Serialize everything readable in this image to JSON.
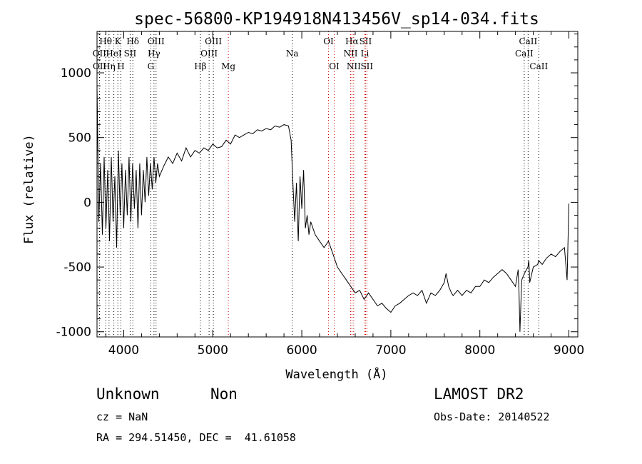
{
  "chart_data": {
    "type": "line",
    "title": "spec-56800-KP194918N413456V_sp14-034.fits",
    "xlabel": "Wavelength (Å)",
    "ylabel": "Flux (relative)",
    "xlim": [
      3700,
      9100
    ],
    "ylim": [
      -1040,
      1320
    ],
    "xticks": [
      4000,
      5000,
      6000,
      7000,
      8000,
      9000
    ],
    "yticks": [
      -1000,
      -500,
      0,
      500,
      1000
    ],
    "grid": false,
    "series": [
      {
        "color": "#000000",
        "x": [
          3700,
          3720,
          3740,
          3760,
          3780,
          3800,
          3820,
          3840,
          3860,
          3880,
          3900,
          3920,
          3940,
          3960,
          3980,
          4000,
          4020,
          4040,
          4060,
          4080,
          4100,
          4120,
          4140,
          4160,
          4180,
          4200,
          4220,
          4240,
          4260,
          4280,
          4300,
          4320,
          4340,
          4360,
          4380,
          4400,
          4450,
          4500,
          4550,
          4600,
          4650,
          4700,
          4750,
          4800,
          4850,
          4900,
          4950,
          5000,
          5050,
          5100,
          5150,
          5200,
          5250,
          5300,
          5350,
          5400,
          5450,
          5500,
          5550,
          5600,
          5650,
          5700,
          5750,
          5800,
          5850,
          5880,
          5900,
          5920,
          5940,
          5960,
          5980,
          6000,
          6020,
          6040,
          6060,
          6080,
          6100,
          6150,
          6200,
          6250,
          6300,
          6350,
          6400,
          6450,
          6500,
          6550,
          6600,
          6650,
          6700,
          6750,
          6800,
          6850,
          6900,
          6950,
          7000,
          7050,
          7100,
          7150,
          7200,
          7250,
          7300,
          7350,
          7400,
          7450,
          7500,
          7550,
          7600,
          7620,
          7650,
          7680,
          7700,
          7750,
          7800,
          7850,
          7900,
          7950,
          8000,
          8050,
          8100,
          8150,
          8200,
          8250,
          8300,
          8350,
          8400,
          8430,
          8440,
          8450,
          8460,
          8470,
          8500,
          8540,
          8550,
          8560,
          8600,
          8650,
          8660,
          8700,
          8750,
          8800,
          8850,
          8900,
          8950,
          8980,
          9000
        ],
        "values": [
          900,
          -150,
          300,
          -250,
          350,
          -200,
          250,
          -300,
          350,
          -150,
          200,
          -350,
          400,
          -100,
          300,
          -200,
          250,
          -100,
          350,
          -150,
          300,
          -50,
          250,
          -200,
          300,
          -100,
          250,
          0,
          350,
          50,
          300,
          100,
          350,
          150,
          300,
          200,
          280,
          350,
          300,
          380,
          320,
          420,
          350,
          400,
          380,
          420,
          400,
          450,
          420,
          430,
          480,
          450,
          520,
          500,
          520,
          540,
          530,
          560,
          550,
          570,
          560,
          590,
          580,
          600,
          590,
          480,
          150,
          -150,
          150,
          -300,
          200,
          -50,
          250,
          -200,
          -100,
          -250,
          -150,
          -250,
          -300,
          -350,
          -300,
          -400,
          -500,
          -550,
          -600,
          -650,
          -700,
          -680,
          -750,
          -700,
          -750,
          -800,
          -780,
          -820,
          -850,
          -800,
          -780,
          -750,
          -720,
          -700,
          -720,
          -680,
          -780,
          -700,
          -720,
          -680,
          -620,
          -550,
          -650,
          -700,
          -720,
          -680,
          -720,
          -680,
          -700,
          -650,
          -650,
          -600,
          -620,
          -580,
          -550,
          -520,
          -550,
          -600,
          -650,
          -520,
          -700,
          -1000,
          -800,
          -600,
          -550,
          -500,
          -450,
          -620,
          -500,
          -480,
          -450,
          -480,
          -430,
          -400,
          -420,
          -380,
          -350,
          -600,
          -10
        ]
      }
    ]
  },
  "spectral_lines": [
    {
      "label": "Hθ",
      "wave": 3797,
      "row": 1,
      "color": "#000000"
    },
    {
      "label": "K",
      "wave": 3934,
      "row": 1,
      "color": "#000000"
    },
    {
      "label": "Hδ",
      "wave": 4102,
      "row": 1,
      "color": "#000000"
    },
    {
      "label": "OIII",
      "wave": 4363,
      "row": 1,
      "color": "#000000"
    },
    {
      "label": "OIII",
      "wave": 5007,
      "row": 1,
      "color": "#000000"
    },
    {
      "label": "OI",
      "wave": 6300,
      "row": 1,
      "color": "#cc0000"
    },
    {
      "label": "Hα",
      "wave": 6563,
      "row": 1,
      "color": "#cc0000"
    },
    {
      "label": "SII",
      "wave": 6716,
      "row": 1,
      "color": "#cc0000"
    },
    {
      "label": "CaII",
      "wave": 8542,
      "row": 1,
      "color": "#000000"
    },
    {
      "label": "OII",
      "wave": 3727,
      "row": 2,
      "color": "#000000"
    },
    {
      "label": "HeI",
      "wave": 3889,
      "row": 2,
      "color": "#000000"
    },
    {
      "label": "SII",
      "wave": 4072,
      "row": 2,
      "color": "#000000"
    },
    {
      "label": "Hγ",
      "wave": 4340,
      "row": 2,
      "color": "#000000"
    },
    {
      "label": "OIII",
      "wave": 4959,
      "row": 2,
      "color": "#000000"
    },
    {
      "label": "Na",
      "wave": 5893,
      "row": 2,
      "color": "#000000"
    },
    {
      "label": "NII",
      "wave": 6548,
      "row": 2,
      "color": "#cc0000"
    },
    {
      "label": "Li",
      "wave": 6708,
      "row": 2,
      "color": "#cc0000"
    },
    {
      "label": "CaII",
      "wave": 8498,
      "row": 2,
      "color": "#000000"
    },
    {
      "label": "OII",
      "wave": 3729,
      "row": 3,
      "color": "#000000"
    },
    {
      "label": "Hη",
      "wave": 3835,
      "row": 3,
      "color": "#000000"
    },
    {
      "label": "H",
      "wave": 3968,
      "row": 3,
      "color": "#000000"
    },
    {
      "label": "G",
      "wave": 4304,
      "row": 3,
      "color": "#000000"
    },
    {
      "label": "Hβ",
      "wave": 4861,
      "row": 3,
      "color": "#000000"
    },
    {
      "label": "Mg",
      "wave": 5175,
      "row": 3,
      "color": "#cc0000"
    },
    {
      "label": "OI",
      "wave": 6364,
      "row": 3,
      "color": "#cc0000"
    },
    {
      "label": "NII",
      "wave": 6583,
      "row": 3,
      "color": "#cc0000"
    },
    {
      "label": "SII",
      "wave": 6731,
      "row": 3,
      "color": "#cc0000"
    },
    {
      "label": "CaII",
      "wave": 8662,
      "row": 3,
      "color": "#000000"
    }
  ],
  "footer": {
    "class_label": "Unknown",
    "subclass_label": "Non",
    "survey": "LAMOST DR2",
    "cz": "cz = NaN",
    "obs_date": "Obs-Date: 20140522",
    "coords": "RA = 294.51450, DEC =  41.61058"
  }
}
